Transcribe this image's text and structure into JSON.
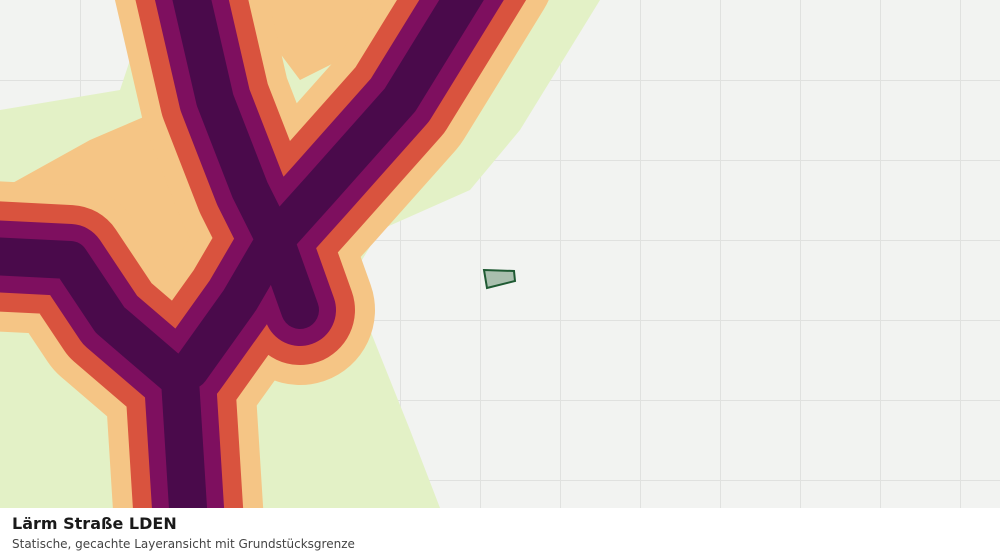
{
  "panel": {
    "title": "Lärm Straße LDEN",
    "subtitle": "Statische, gecachte Layeransicht mit Grundstücksgrenze"
  }
}
